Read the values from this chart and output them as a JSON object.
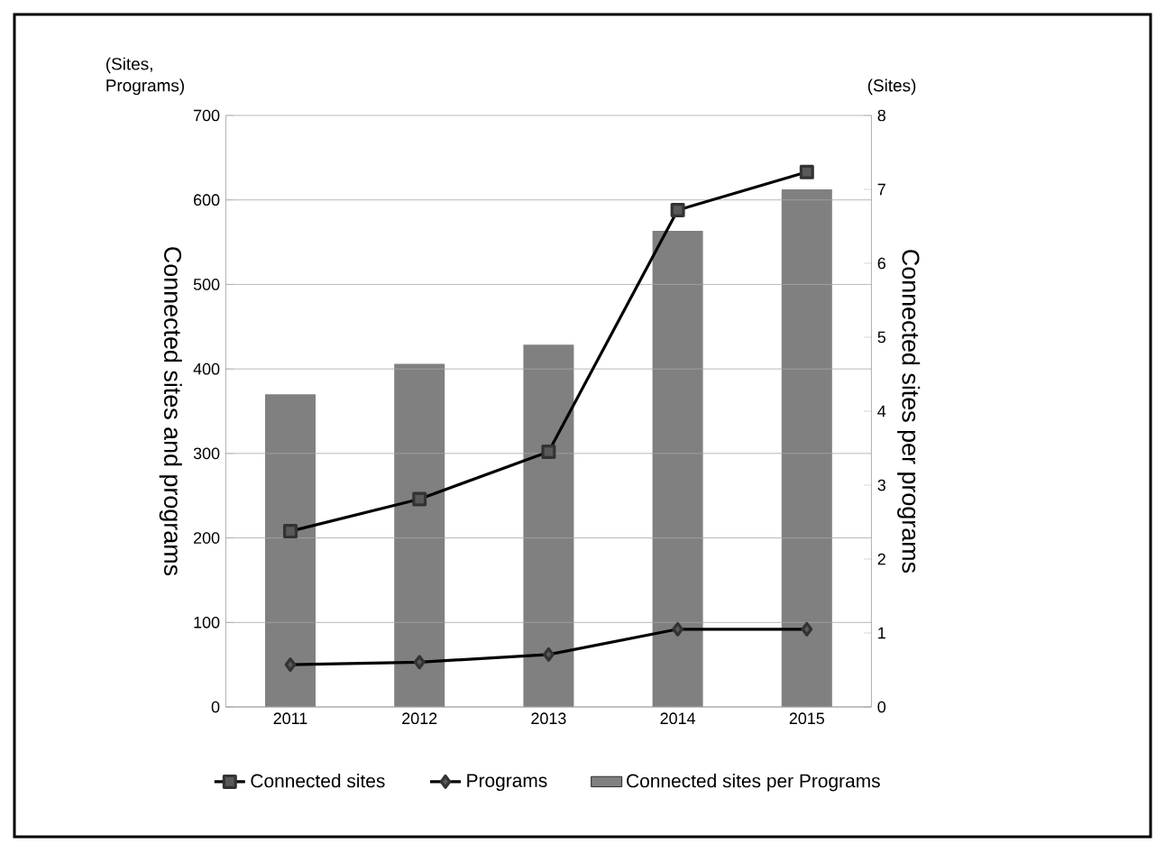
{
  "chart_data": {
    "type": "bar",
    "ylabel": "Connected sites and programs",
    "y2label": "Connected sites per programs",
    "annotations": [
      "(Sites, Programs)",
      "(Sites)"
    ],
    "categories": [
      "2011",
      "2012",
      "2013",
      "2014",
      "2015"
    ],
    "series": [
      {
        "name": "Connected sites",
        "type": "line",
        "color": "#000000",
        "marker": "square",
        "values": [
          208,
          246,
          302,
          588,
          633
        ]
      },
      {
        "name": "Programs",
        "type": "line",
        "color": "#000000",
        "marker": "diamond",
        "values": [
          50,
          53,
          62,
          92,
          92
        ]
      },
      {
        "name": "Connected sites per Programs",
        "axis": "y2",
        "color": "#808080",
        "values": [
          4.23,
          4.64,
          4.9,
          6.44,
          7.0
        ]
      }
    ],
    "ylim": [
      0,
      700
    ],
    "yticks": [
      0,
      100,
      200,
      300,
      400,
      500,
      600,
      700
    ],
    "y2lim": [
      0,
      8
    ],
    "y2ticks": [
      0,
      1,
      2,
      3,
      4,
      5,
      6,
      7,
      8
    ],
    "grid": "y",
    "legend": "bottom"
  }
}
